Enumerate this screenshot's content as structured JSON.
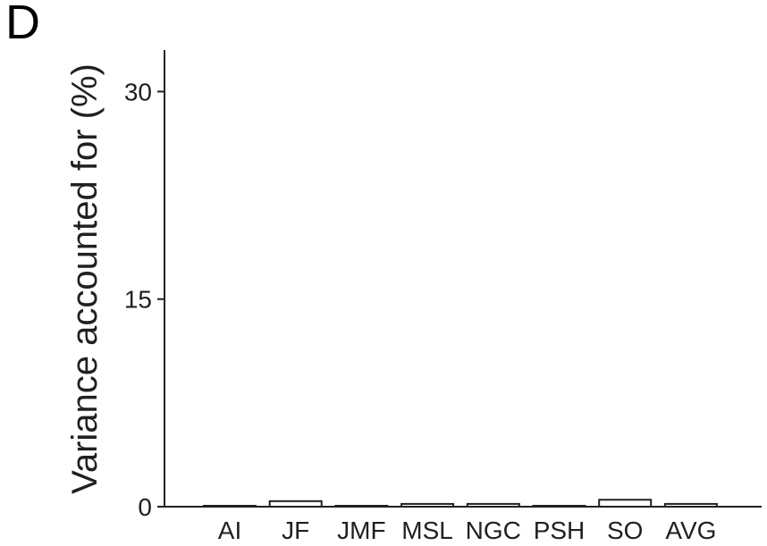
{
  "panel_label": "D",
  "chart_data": {
    "type": "bar",
    "categories": [
      "AI",
      "JF",
      "JMF",
      "MSL",
      "NGC",
      "PSH",
      "SO",
      "AVG"
    ],
    "values": [
      0.05,
      0.4,
      0.05,
      0.2,
      0.2,
      0.05,
      0.5,
      0.2
    ],
    "title": "",
    "xlabel": "",
    "ylabel": "Variance accounted for (%)",
    "ylim": [
      0,
      33
    ],
    "yticks": [
      0,
      15,
      30
    ],
    "ytick_labels": [
      "0",
      "15",
      "30"
    ],
    "grid": false,
    "bar_fill": "#ffffff",
    "bar_stroke": "#231f20",
    "axis_color": "#231f20"
  }
}
